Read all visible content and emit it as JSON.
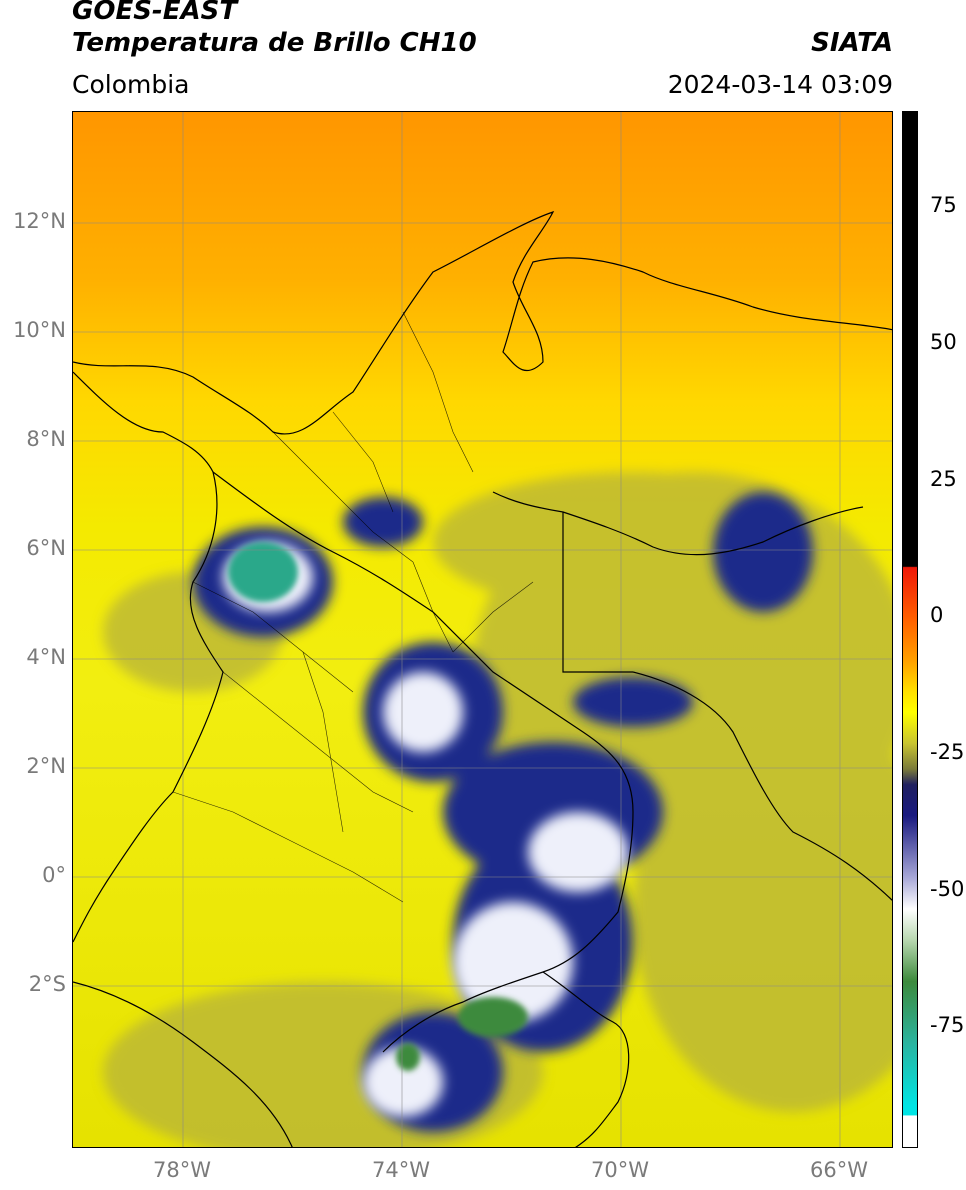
{
  "header": {
    "satellite": "GOES-EAST",
    "product": "Temperatura de Brillo CH10",
    "region": "Colombia",
    "agency": "SIATA",
    "timestamp": "2024-03-14 03:09"
  },
  "map": {
    "lat_labels": [
      "12°N",
      "10°N",
      "8°N",
      "6°N",
      "4°N",
      "2°N",
      "0°",
      "2°S"
    ],
    "lon_labels": [
      "78°W",
      "74°W",
      "70°W",
      "66°W"
    ],
    "lat_range": [
      -5,
      14
    ],
    "lon_range": [
      -80,
      -65
    ]
  },
  "colorbar": {
    "tick_labels": [
      "75",
      "50",
      "25",
      "0",
      "-25",
      "-50",
      "-75"
    ],
    "range": [
      -95,
      90
    ],
    "colors": {
      "black": "#000000",
      "red": "#e8200c",
      "orange": "#ff9900",
      "yellow": "#ffff00",
      "olive": "#9a9a3a",
      "navy": "#0a1070",
      "white": "#ffffff",
      "green": "#3c8a3c",
      "teal": "#2ab4a0",
      "cyan": "#00e4e4"
    }
  }
}
